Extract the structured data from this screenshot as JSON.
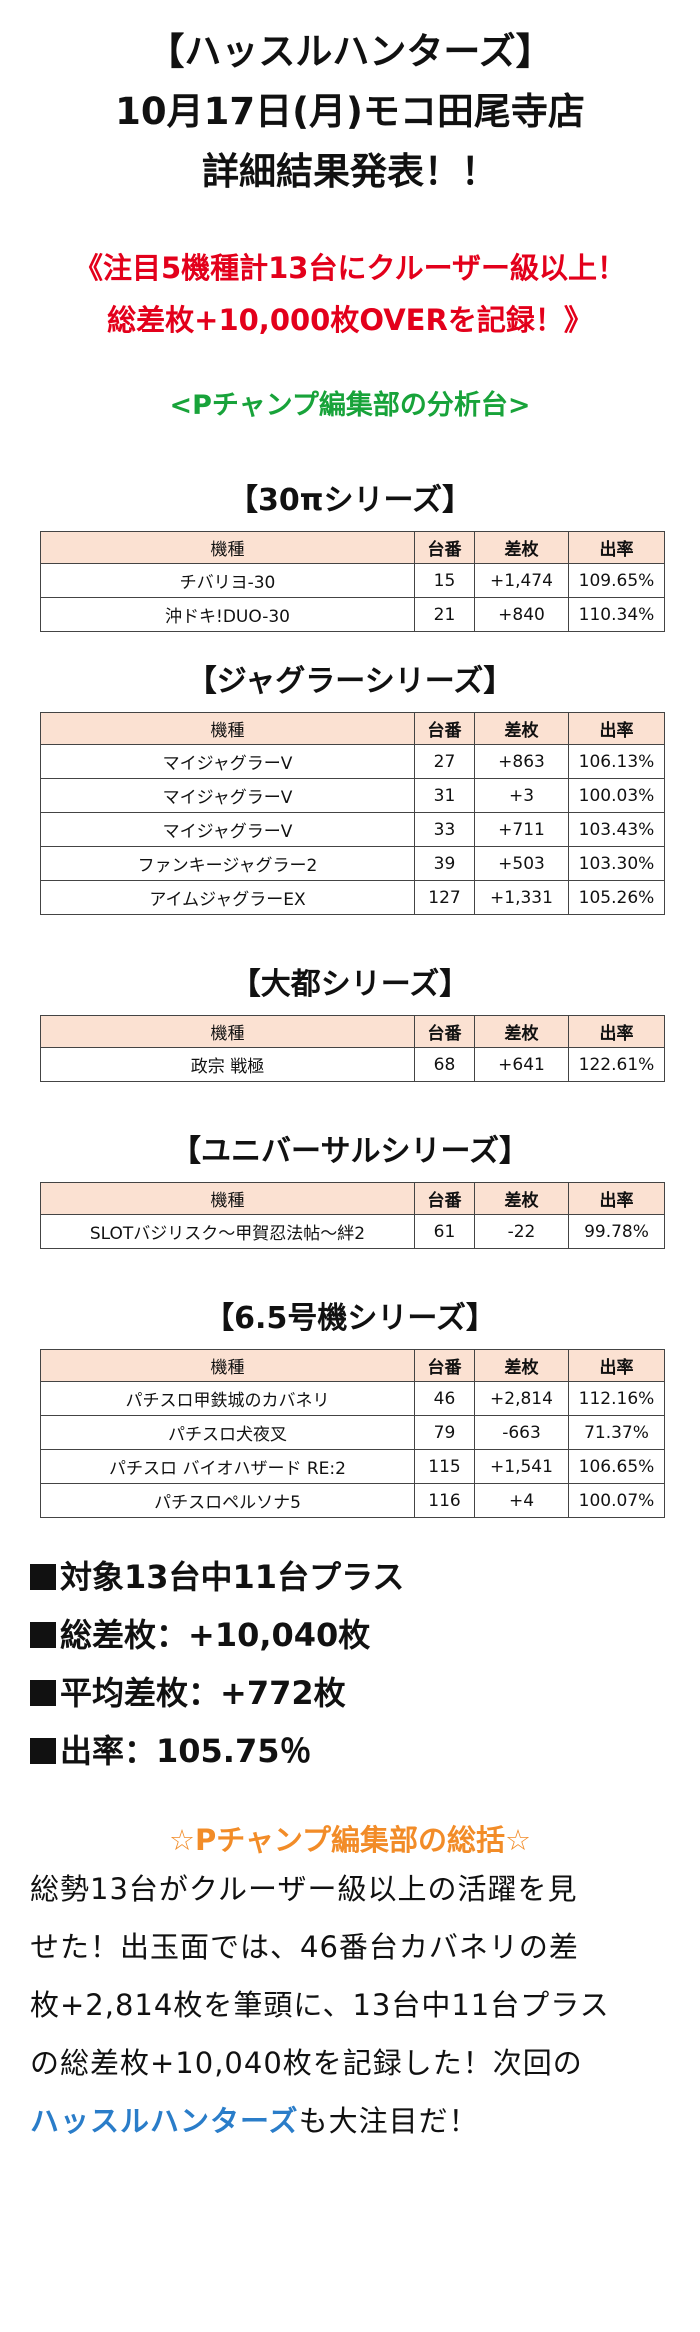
{
  "header": {
    "line1": "【ハッスルハンターズ】",
    "line2": "10月17日(月)モコ田尾寺店",
    "line3": "詳細結果発表！！"
  },
  "headline": {
    "line1": "《注目5機種計13台にクルーザー級以上！",
    "line2": "総差枚+10,000枚OVERを記録！》"
  },
  "subheading": "<Pチャンプ編集部の分析台>",
  "table_headers": {
    "machine": "機種",
    "number": "台番",
    "diff": "差枚",
    "rate": "出率"
  },
  "sections": [
    {
      "title": "【30πシリーズ】",
      "rows": [
        {
          "machine": "チバリヨ-30",
          "number": "15",
          "diff": "+1,474",
          "rate": "109.65%"
        },
        {
          "machine": "沖ドキ!DUO-30",
          "number": "21",
          "diff": "+840",
          "rate": "110.34%"
        }
      ]
    },
    {
      "title": "【ジャグラーシリーズ】",
      "rows": [
        {
          "machine": "マイジャグラーV",
          "number": "27",
          "diff": "+863",
          "rate": "106.13%"
        },
        {
          "machine": "マイジャグラーV",
          "number": "31",
          "diff": "+3",
          "rate": "100.03%"
        },
        {
          "machine": "マイジャグラーV",
          "number": "33",
          "diff": "+711",
          "rate": "103.43%"
        },
        {
          "machine": "ファンキージャグラー2",
          "number": "39",
          "diff": "+503",
          "rate": "103.30%"
        },
        {
          "machine": "アイムジャグラーEX",
          "number": "127",
          "diff": "+1,331",
          "rate": "105.26%"
        }
      ]
    },
    {
      "title": "【大都シリーズ】",
      "rows": [
        {
          "machine": "政宗 戦極",
          "number": "68",
          "diff": "+641",
          "rate": "122.61%"
        }
      ]
    },
    {
      "title": "【ユニバーサルシリーズ】",
      "rows": [
        {
          "machine": "SLOTバジリスク～甲賀忍法帖～絆2",
          "number": "61",
          "diff": "-22",
          "rate": "99.78%"
        }
      ]
    },
    {
      "title": "【6.5号機シリーズ】",
      "rows": [
        {
          "machine": "パチスロ甲鉄城のカバネリ",
          "number": "46",
          "diff": "+2,814",
          "rate": "112.16%"
        },
        {
          "machine": "パチスロ犬夜叉",
          "number": "79",
          "diff": "-663",
          "rate": "71.37%"
        },
        {
          "machine": "パチスロ バイオハザード RE:2",
          "number": "115",
          "diff": "+1,541",
          "rate": "106.65%"
        },
        {
          "machine": "パチスロペルソナ5",
          "number": "116",
          "diff": "+4",
          "rate": "100.07%"
        }
      ]
    }
  ],
  "summary": {
    "plus_count": "対象13台中11台プラス",
    "total_diff": "総差枚：+10,040枚",
    "avg_diff": "平均差枚：+772枚",
    "rate": "出率：105.75％"
  },
  "conclusion": {
    "title": "☆Pチャンプ編集部の総括☆",
    "body_line1": "総勢13台がクルーザー級以上の活躍を見",
    "body_line2": "せた！出玉面では、46番台カバネリの差",
    "body_line3": "枚+2,814枚を筆頭に、13台中11台プラス",
    "body_line4": "の総差枚+10,040枚を記録した！次回の",
    "body_highlight": "ハッスルハンターズ",
    "body_end": "も大注目だ！"
  },
  "colors": {
    "red": "#e3001b",
    "green": "#18a33a",
    "orange": "#f28c28",
    "blue": "#2a7dc9",
    "table_header_bg": "#fbe1d2"
  }
}
